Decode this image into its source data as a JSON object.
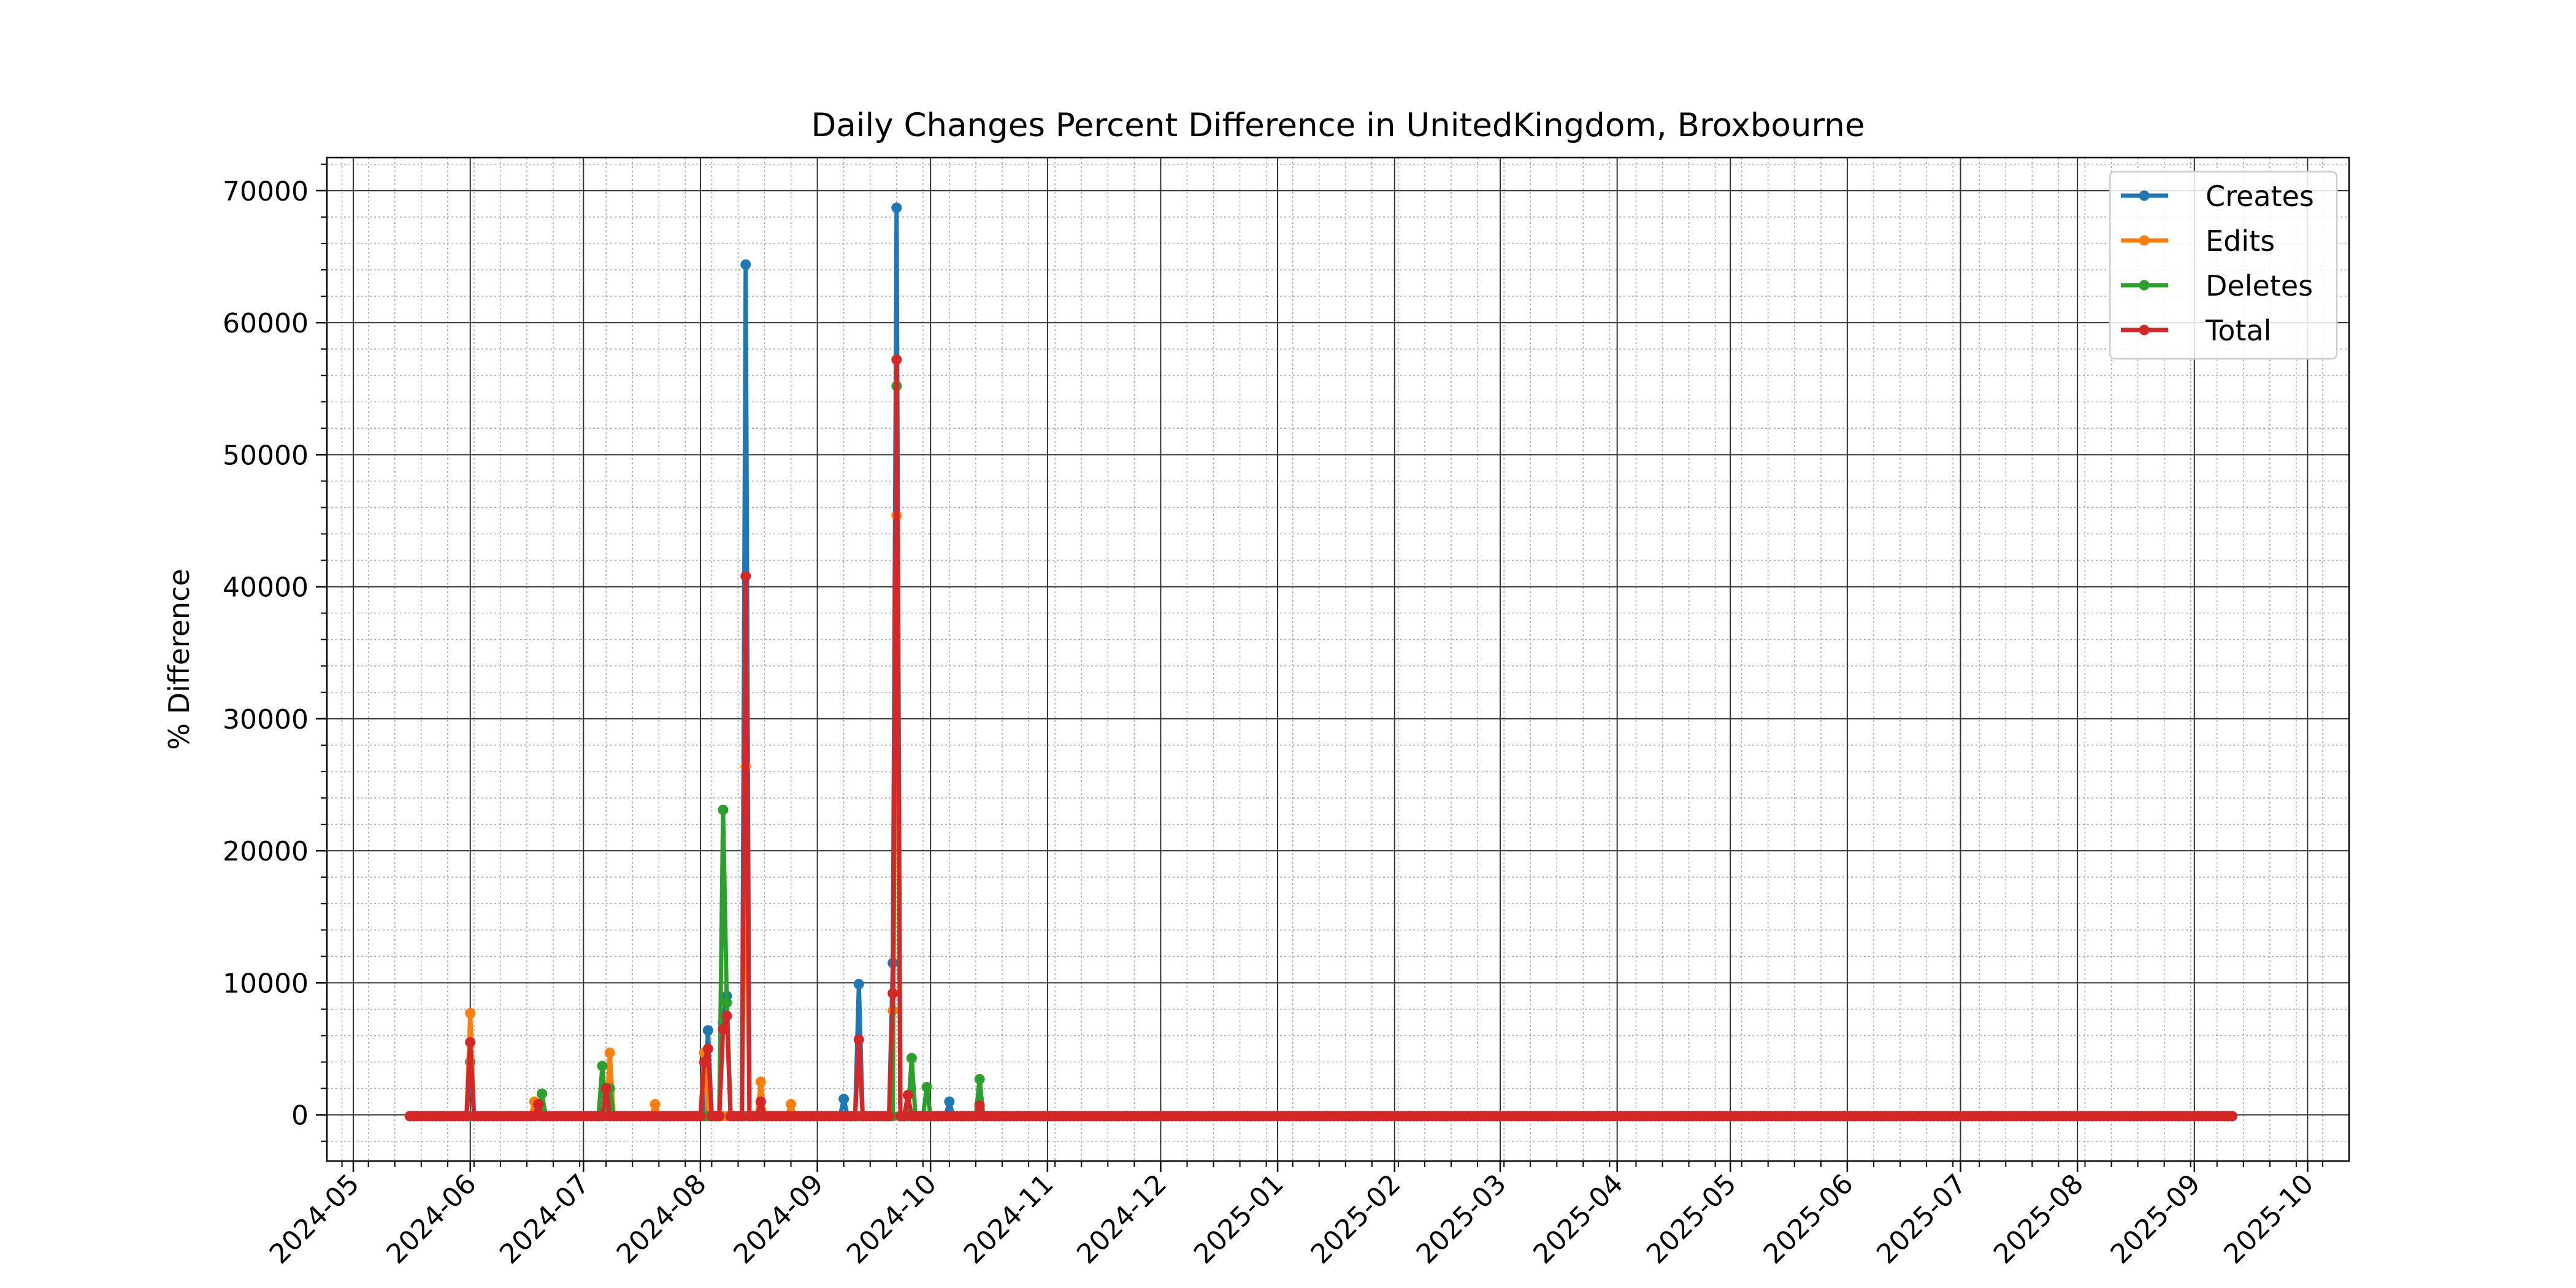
{
  "chart_data": {
    "type": "line",
    "title": "Daily Changes Percent Difference in UnitedKingdom, Broxbourne",
    "xlabel": "",
    "ylabel": "% Difference",
    "x_range": [
      "2024-04-24",
      "2025-10-12"
    ],
    "ylim": [
      -3500,
      72500
    ],
    "y_ticks": [
      0,
      10000,
      20000,
      30000,
      40000,
      50000,
      60000,
      70000
    ],
    "y_tick_labels": [
      "0",
      "10000",
      "20000",
      "30000",
      "40000",
      "50000",
      "60000",
      "70000"
    ],
    "x_ticks": [
      "2024-05-01",
      "2024-06-01",
      "2024-07-01",
      "2024-08-01",
      "2024-09-01",
      "2024-10-01",
      "2024-11-01",
      "2024-12-01",
      "2025-01-01",
      "2025-02-01",
      "2025-03-01",
      "2025-04-01",
      "2025-05-01",
      "2025-06-01",
      "2025-07-01",
      "2025-08-01",
      "2025-09-01",
      "2025-10-01"
    ],
    "x_tick_labels": [
      "2024-05",
      "2024-06",
      "2024-07",
      "2024-08",
      "2024-09",
      "2024-10",
      "2024-11",
      "2024-12",
      "2025-01",
      "2025-02",
      "2025-03",
      "2025-04",
      "2025-05",
      "2025-06",
      "2025-07",
      "2025-08",
      "2025-09",
      "2025-10"
    ],
    "grid": true,
    "minor_grid": true,
    "legend_position": "top-right",
    "baseline_range": [
      "2024-05-16",
      "2025-09-11"
    ],
    "baseline_value": -100,
    "series": [
      {
        "name": "Creates",
        "color": "#1f77b4",
        "points": [
          [
            "2024-06-01",
            4000
          ],
          [
            "2024-06-19",
            600
          ],
          [
            "2024-07-07",
            1500
          ],
          [
            "2024-08-03",
            6400
          ],
          [
            "2024-08-07",
            7000
          ],
          [
            "2024-08-08",
            9000
          ],
          [
            "2024-08-13",
            64400
          ],
          [
            "2024-09-08",
            1200
          ],
          [
            "2024-09-12",
            9900
          ],
          [
            "2024-09-21",
            11500
          ],
          [
            "2024-09-22",
            68700
          ],
          [
            "2024-10-06",
            1000
          ]
        ]
      },
      {
        "name": "Edits",
        "color": "#ff7f0e",
        "points": [
          [
            "2024-06-01",
            7700
          ],
          [
            "2024-06-18",
            1000
          ],
          [
            "2024-07-08",
            4700
          ],
          [
            "2024-07-20",
            800
          ],
          [
            "2024-08-02",
            4700
          ],
          [
            "2024-08-13",
            26400
          ],
          [
            "2024-08-17",
            2500
          ],
          [
            "2024-08-25",
            800
          ],
          [
            "2024-09-21",
            7900
          ],
          [
            "2024-09-22",
            45400
          ],
          [
            "2024-10-14",
            800
          ]
        ]
      },
      {
        "name": "Deletes",
        "color": "#2ca02c",
        "points": [
          [
            "2024-06-20",
            1600
          ],
          [
            "2024-07-06",
            3700
          ],
          [
            "2024-07-08",
            2000
          ],
          [
            "2024-08-07",
            23100
          ],
          [
            "2024-08-08",
            8500
          ],
          [
            "2024-09-22",
            55200
          ],
          [
            "2024-09-26",
            4300
          ],
          [
            "2024-09-30",
            2100
          ],
          [
            "2024-10-14",
            2700
          ]
        ]
      },
      {
        "name": "Total",
        "color": "#d62728",
        "points": [
          [
            "2024-06-01",
            5500
          ],
          [
            "2024-06-19",
            800
          ],
          [
            "2024-07-07",
            2000
          ],
          [
            "2024-08-02",
            4000
          ],
          [
            "2024-08-03",
            5000
          ],
          [
            "2024-08-07",
            6500
          ],
          [
            "2024-08-08",
            7500
          ],
          [
            "2024-08-13",
            40800
          ],
          [
            "2024-08-17",
            1000
          ],
          [
            "2024-09-12",
            5700
          ],
          [
            "2024-09-21",
            9200
          ],
          [
            "2024-09-22",
            57200
          ],
          [
            "2024-09-25",
            1500
          ],
          [
            "2024-10-14",
            700
          ]
        ]
      }
    ]
  }
}
